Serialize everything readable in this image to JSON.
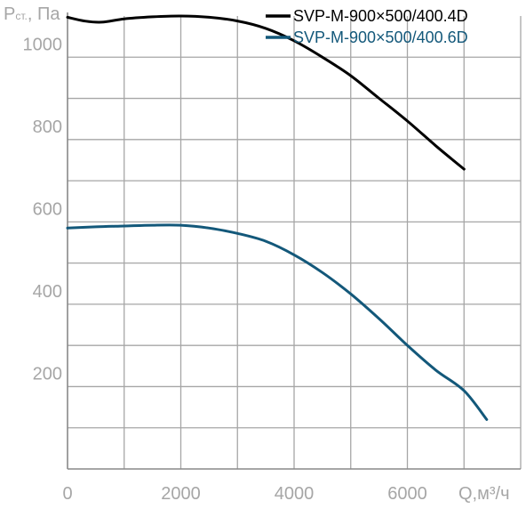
{
  "chart_data": {
    "type": "line",
    "ylabel_main": "P",
    "ylabel_sub": "ст.",
    "ylabel_unit": ", Па",
    "xlabel": "Q,м³/ч",
    "xlim": [
      0,
      8000
    ],
    "ylim": [
      0,
      1100
    ],
    "x_ticks": [
      0,
      1000,
      2000,
      3000,
      4000,
      5000,
      6000,
      7000,
      8000
    ],
    "x_tick_labels": [
      {
        "x": 0,
        "text": "0"
      },
      {
        "x": 2000,
        "text": "2000"
      },
      {
        "x": 4000,
        "text": "4000"
      },
      {
        "x": 6000,
        "text": "6000"
      }
    ],
    "y_ticks": [
      100,
      200,
      300,
      400,
      500,
      600,
      700,
      800,
      900,
      1000
    ],
    "y_tick_labels": [
      {
        "y": 200,
        "text": "200"
      },
      {
        "y": 400,
        "text": "400"
      },
      {
        "y": 600,
        "text": "600"
      },
      {
        "y": 800,
        "text": "800"
      },
      {
        "y": 1000,
        "text": "1000"
      }
    ],
    "grid": true,
    "legend_position": "top-right",
    "series": [
      {
        "name": "SVP-M-900×500/400.4D",
        "color": "#000000",
        "x": [
          0,
          300,
          600,
          1000,
          1500,
          2000,
          2500,
          3000,
          3500,
          4000,
          4500,
          5000,
          5500,
          6000,
          6500,
          7000
        ],
        "y": [
          1097,
          1088,
          1085,
          1093,
          1098,
          1100,
          1097,
          1088,
          1070,
          1040,
          1000,
          955,
          900,
          845,
          785,
          728
        ]
      },
      {
        "name": "SVP-M-900×500/400.6D",
        "color": "#13587a",
        "x": [
          0,
          500,
          1000,
          1500,
          2000,
          2500,
          3000,
          3500,
          4000,
          4500,
          5000,
          5500,
          6000,
          6500,
          7000,
          7400
        ],
        "y": [
          585,
          588,
          590,
          592,
          592,
          585,
          572,
          553,
          520,
          477,
          425,
          365,
          300,
          240,
          190,
          120
        ]
      }
    ]
  }
}
